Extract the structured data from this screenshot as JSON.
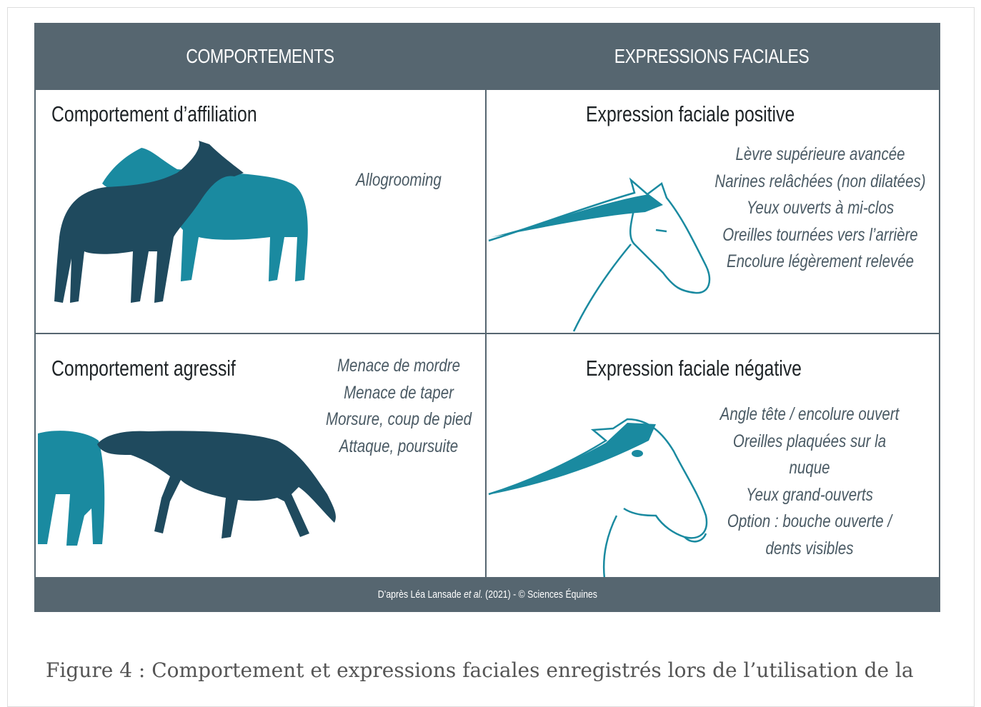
{
  "figure": {
    "header": [
      "COMPORTEMENTS",
      "EXPRESSIONS FACIALES"
    ],
    "cells": [
      {
        "title": "Comportement d’affiliation",
        "items": [
          "Allogrooming"
        ]
      },
      {
        "title": "Expression faciale positive",
        "items": [
          "Lèvre supérieure avancée",
          "Narines relâchées (non dilatées)",
          "Yeux ouverts à mi-clos",
          "Oreilles tournées vers l’arrière",
          "Encolure légèrement relevée"
        ]
      },
      {
        "title": "Comportement agressif",
        "items": [
          "Menace de mordre",
          "Menace de taper",
          "Morsure, coup de pied",
          "Attaque, poursuite"
        ]
      },
      {
        "title": "Expression faciale négative",
        "items": [
          "Angle tête / encolure ouvert",
          "Oreilles plaquées sur la nuque",
          "Yeux grand-ouverts",
          "Option : bouche ouverte / dents visibles"
        ]
      }
    ],
    "credit": [
      "D’après Léa Lansade ",
      "et al.",
      " (2021) - © Sciences Équines"
    ]
  },
  "caption": "Figure 4 : Comportement et expressions faciales enregistrés lors de l’utilisation de la"
}
